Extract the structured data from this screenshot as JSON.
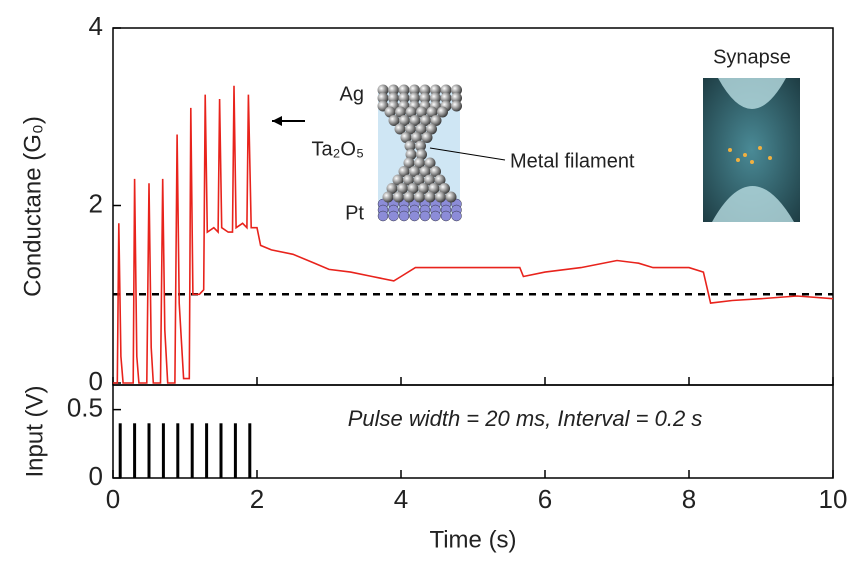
{
  "chart_data": [
    {
      "type": "line",
      "ylabel": "Conductane (G₀)",
      "color": "#e8231c",
      "xlim": [
        0,
        10
      ],
      "ylim": [
        0,
        4
      ],
      "yticks": [
        0,
        2,
        4
      ],
      "hline": 1,
      "annotations": [
        "Ag",
        "Ta₂O₅",
        "Pt",
        "Metal filament",
        "Synapse"
      ],
      "x": [
        0,
        0.06,
        0.08,
        0.11,
        0.14,
        0.28,
        0.3,
        0.33,
        0.36,
        0.47,
        0.5,
        0.53,
        0.56,
        0.66,
        0.69,
        0.72,
        0.76,
        0.86,
        0.89,
        0.92,
        0.98,
        1.06,
        1.08,
        1.11,
        1.2,
        1.26,
        1.28,
        1.31,
        1.4,
        1.46,
        1.48,
        1.51,
        1.6,
        1.66,
        1.68,
        1.71,
        1.8,
        1.86,
        1.88,
        1.92,
        2.0,
        2.05,
        2.2,
        2.5,
        2.8,
        3.0,
        3.3,
        3.6,
        3.9,
        4.0,
        4.2,
        4.5,
        5.0,
        5.5,
        5.65,
        5.7,
        6.0,
        6.5,
        7.0,
        7.3,
        7.5,
        8.0,
        8.2,
        8.3,
        8.6,
        9.0,
        9.5,
        10
      ],
      "y": [
        0,
        0,
        1.8,
        0.3,
        0,
        0,
        2.3,
        0.3,
        0,
        0,
        2.25,
        0.4,
        0,
        0,
        2.3,
        0.6,
        0,
        0,
        2.8,
        0.9,
        0.05,
        0.05,
        3.1,
        1.0,
        1.0,
        1.05,
        3.25,
        1.7,
        1.75,
        1.7,
        3.2,
        1.75,
        1.7,
        1.7,
        3.35,
        1.75,
        1.8,
        1.75,
        3.25,
        1.75,
        1.75,
        1.55,
        1.5,
        1.45,
        1.35,
        1.28,
        1.25,
        1.2,
        1.15,
        1.2,
        1.3,
        1.3,
        1.3,
        1.3,
        1.3,
        1.2,
        1.25,
        1.3,
        1.38,
        1.35,
        1.3,
        1.3,
        1.25,
        0.9,
        0.93,
        0.95,
        0.98,
        0.95
      ]
    },
    {
      "type": "bar",
      "ylabel": "Input (V)",
      "xlabel": "Time (s)",
      "color": "#000000",
      "annotation": "Pulse width = 20 ms, Interval = 0.2 s",
      "xlim": [
        0,
        10
      ],
      "xticks": [
        0,
        2,
        4,
        6,
        8,
        10
      ],
      "ylim": [
        0,
        0.68
      ],
      "yticks": [
        0,
        0.5
      ],
      "x": [
        0.1,
        0.3,
        0.5,
        0.7,
        0.9,
        1.1,
        1.3,
        1.5,
        1.7,
        1.9
      ],
      "values": [
        0.4,
        0.4,
        0.4,
        0.4,
        0.4,
        0.4,
        0.4,
        0.4,
        0.4,
        0.4
      ]
    }
  ]
}
